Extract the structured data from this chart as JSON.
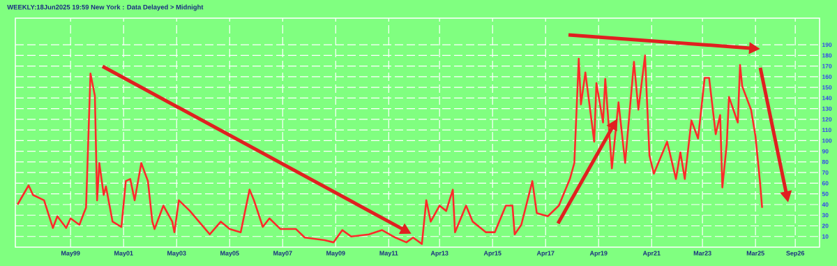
{
  "chart_data": {
    "type": "line",
    "title": "WEEKLY:18Jun2025 19:59 New York : Data Delayed > Midnight",
    "x": [
      "1997-05",
      "1997-10",
      "1997-12",
      "1998-05",
      "1998-09",
      "1998-11",
      "1999-03",
      "1999-05",
      "1999-09",
      "1999-11",
      "1999-12",
      "2000-02",
      "2000-04",
      "2000-05",
      "2000-06",
      "2000-08",
      "2000-09",
      "2000-12",
      "2001-04",
      "2001-06",
      "2001-08",
      "2001-10",
      "2002-01",
      "2002-04",
      "2002-06",
      "2002-07",
      "2002-11",
      "2003-03",
      "2003-04",
      "2003-06",
      "2003-11",
      "2004-08",
      "2005-01",
      "2005-05",
      "2005-10",
      "2006-02",
      "2006-04",
      "2006-08",
      "2006-11",
      "2007-04",
      "2007-11",
      "2008-03",
      "2008-12",
      "2009-04",
      "2009-08",
      "2009-12",
      "2010-08",
      "2011-02",
      "2011-08",
      "2012-01",
      "2012-04",
      "2012-08",
      "2012-10",
      "2012-12",
      "2013-04",
      "2013-07",
      "2013-10",
      "2013-11",
      "2014-04",
      "2014-07",
      "2015-01",
      "2015-05",
      "2015-10",
      "2016-01",
      "2016-02",
      "2016-05",
      "2016-10",
      "2016-12",
      "2017-05",
      "2017-10",
      "2018-03",
      "2018-05",
      "2018-07",
      "2018-08",
      "2018-10",
      "2019-02",
      "2019-03",
      "2019-06",
      "2019-07",
      "2019-10",
      "2020-01",
      "2020-04",
      "2020-08",
      "2020-10",
      "2021-01",
      "2021-03",
      "2021-05",
      "2021-11",
      "2022-03",
      "2022-05",
      "2022-07",
      "2022-10",
      "2023-01",
      "2023-04",
      "2023-06",
      "2023-09",
      "2023-11",
      "2023-12",
      "2024-02",
      "2024-03",
      "2024-07",
      "2024-08",
      "2024-09",
      "2025-01",
      "2025-03",
      "2025-05",
      "2025-06"
    ],
    "values": [
      40,
      58,
      49,
      44,
      18,
      29,
      18,
      27,
      21,
      32,
      37,
      163,
      142,
      44,
      79,
      49,
      57,
      24,
      19,
      62,
      64,
      44,
      79,
      62,
      24,
      17,
      39,
      24,
      14,
      44,
      34,
      12,
      24,
      17,
      14,
      54,
      44,
      19,
      27,
      17,
      17,
      9,
      6.5,
      4.5,
      16,
      10,
      12,
      16,
      9,
      4.5,
      9,
      3,
      44,
      24,
      39,
      34,
      54,
      14,
      39,
      24,
      14,
      14,
      39,
      39,
      12,
      21,
      62,
      32,
      29,
      39,
      64,
      79,
      177,
      134,
      164,
      99,
      154,
      117,
      158,
      74,
      136,
      79,
      174,
      129,
      180,
      86,
      69,
      99,
      64,
      89,
      64,
      119,
      102,
      159,
      159,
      106,
      124,
      56,
      97,
      141,
      117,
      171,
      151,
      129,
      104,
      62,
      37
    ],
    "color": "#ff2a2a",
    "xlim": [
      "1997-04",
      "2027-08"
    ],
    "xticks": [
      {
        "value": "1999-05",
        "label": "May99"
      },
      {
        "value": "2001-05",
        "label": "May01"
      },
      {
        "value": "2003-05",
        "label": "May03"
      },
      {
        "value": "2005-05",
        "label": "May05"
      },
      {
        "value": "2007-05",
        "label": "May07"
      },
      {
        "value": "2009-05",
        "label": "May09"
      },
      {
        "value": "2011-05",
        "label": "May11"
      },
      {
        "value": "2013-04",
        "label": "Apr13"
      },
      {
        "value": "2015-04",
        "label": "Apr15"
      },
      {
        "value": "2017-04",
        "label": "Apr17"
      },
      {
        "value": "2019-04",
        "label": "Apr19"
      },
      {
        "value": "2021-04",
        "label": "Apr21"
      },
      {
        "value": "2023-03",
        "label": "Mar23"
      },
      {
        "value": "2025-03",
        "label": "Mar25"
      },
      {
        "value": "2026-09",
        "label": "Sep26"
      }
    ],
    "ylim": [
      0,
      215
    ],
    "yticks": [
      10,
      20,
      30,
      40,
      50,
      60,
      70,
      80,
      90,
      100,
      110,
      120,
      130,
      140,
      150,
      160,
      170,
      180,
      190
    ],
    "grid": true
  }
}
